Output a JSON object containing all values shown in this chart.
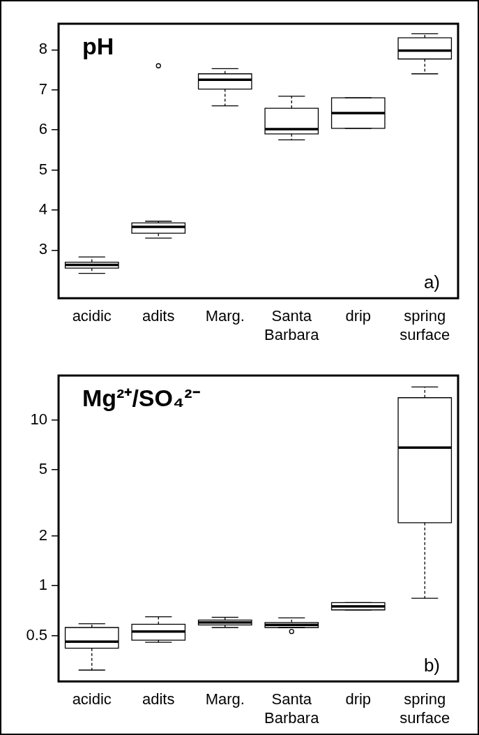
{
  "chart_data": [
    {
      "type": "box",
      "title": "pH",
      "categories": [
        "acidic",
        "adits",
        "Marg.",
        "Santa Barbara",
        "drip",
        "spring surface"
      ],
      "boxes": [
        {
          "low": 2.42,
          "q1": 2.55,
          "median": 2.63,
          "q3": 2.7,
          "high": 2.83
        },
        {
          "low": 3.3,
          "q1": 3.42,
          "median": 3.58,
          "q3": 3.68,
          "high": 3.72,
          "outliers": [
            7.6
          ]
        },
        {
          "low": 6.6,
          "q1": 7.02,
          "median": 7.25,
          "q3": 7.4,
          "high": 7.53
        },
        {
          "low": 5.75,
          "q1": 5.9,
          "median": 6.02,
          "q3": 6.54,
          "high": 6.84
        },
        {
          "low": 6.04,
          "q1": 6.04,
          "median": 6.42,
          "q3": 6.8,
          "high": 6.8
        },
        {
          "low": 7.4,
          "q1": 7.77,
          "median": 7.98,
          "q3": 8.3,
          "high": 8.4
        }
      ],
      "color": "#000000",
      "ylim": [
        1.8,
        8.65
      ],
      "yticks": [
        3,
        4,
        5,
        6,
        7,
        8
      ],
      "grid": false,
      "legend": false,
      "line_style": "dashed",
      "annotations": [
        "a)"
      ]
    },
    {
      "type": "box",
      "title": "Mg²⁺/SO₄²⁻",
      "categories": [
        "acidic",
        "adits",
        "Marg.",
        "Santa Barbara",
        "drip",
        "spring surface"
      ],
      "boxes": [
        {
          "low": 0.31,
          "q1": 0.42,
          "median": 0.46,
          "q3": 0.56,
          "high": 0.59
        },
        {
          "low": 0.456,
          "q1": 0.47,
          "median": 0.53,
          "q3": 0.585,
          "high": 0.65
        },
        {
          "low": 0.56,
          "q1": 0.58,
          "median": 0.6,
          "q3": 0.62,
          "high": 0.645
        },
        {
          "low": 0.56,
          "q1": 0.56,
          "median": 0.58,
          "q3": 0.6,
          "high": 0.64,
          "outliers": [
            0.53
          ]
        },
        {
          "low": 0.715,
          "q1": 0.715,
          "median": 0.75,
          "q3": 0.79,
          "high": 0.79
        },
        {
          "low": 0.84,
          "q1": 2.4,
          "median": 6.8,
          "q3": 13.6,
          "high": 15.8
        }
      ],
      "color": "#000000",
      "log": true,
      "ylim": [
        0.265,
        18.5
      ],
      "yticks": [
        0.5,
        1,
        2,
        5,
        10
      ],
      "grid": false,
      "legend": false,
      "line_style": "dashed",
      "annotations": [
        "b)"
      ]
    }
  ]
}
